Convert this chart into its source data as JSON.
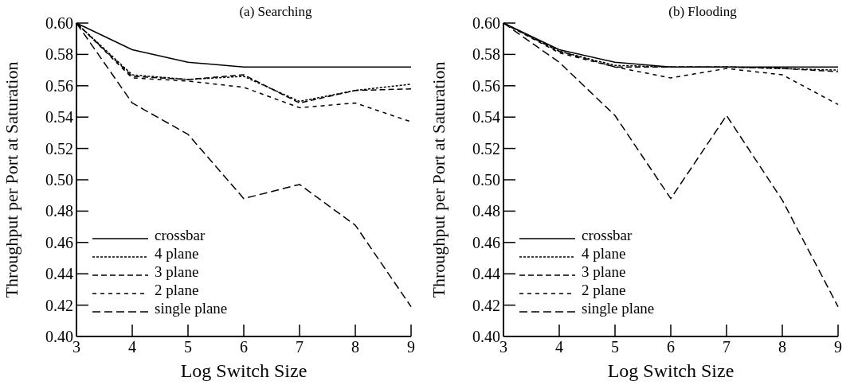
{
  "chart_data": [
    {
      "type": "line",
      "title": "(a) Searching",
      "xlabel": "Log Switch Size",
      "ylabel": "Throughput per Port at Saturation",
      "x": [
        3,
        4,
        5,
        6,
        7,
        8,
        9
      ],
      "xlim": [
        3,
        9
      ],
      "xticks": [
        3,
        4,
        5,
        6,
        7,
        8,
        9
      ],
      "ylim": [
        0.4,
        0.6
      ],
      "yticks": [
        {
          "value": 0.4,
          "label": "0.40"
        },
        0.42,
        0.44,
        0.46,
        0.48,
        {
          "value": 0.5,
          "label": "0.50"
        },
        0.52,
        0.54,
        0.56,
        0.58,
        {
          "value": 0.6,
          "label": "0.60"
        }
      ],
      "legend": "bottom left",
      "grid": false,
      "series": [
        {
          "name": "crossbar",
          "color": "#000000",
          "line_style": "solid",
          "values": [
            0.6,
            0.583,
            0.575,
            0.572,
            0.572,
            0.572,
            0.572
          ]
        },
        {
          "name": "4 plane",
          "color": "#000000",
          "line_style": "dotted",
          "values": [
            0.6,
            0.567,
            0.564,
            0.566,
            0.55,
            0.557,
            0.561
          ]
        },
        {
          "name": "3 plane",
          "color": "#000000",
          "line_style": "dashed",
          "values": [
            0.6,
            0.566,
            0.564,
            0.567,
            0.549,
            0.557,
            0.558
          ]
        },
        {
          "name": "2 plane",
          "color": "#000000",
          "line_style": "dashed",
          "values": [
            0.6,
            0.565,
            0.563,
            0.559,
            0.546,
            0.549,
            0.537
          ]
        },
        {
          "name": "single plane",
          "color": "#000000",
          "line_style": "dashed",
          "values": [
            0.6,
            0.549,
            0.529,
            0.488,
            0.497,
            0.471,
            0.419
          ]
        }
      ]
    },
    {
      "type": "line",
      "title": "(b) Flooding",
      "xlabel": "Log Switch Size",
      "ylabel": "Throughput per Port at Saturation",
      "x": [
        3,
        4,
        5,
        6,
        7,
        8,
        9
      ],
      "xlim": [
        3,
        9
      ],
      "xticks": [
        3,
        4,
        5,
        6,
        7,
        8,
        9
      ],
      "ylim": [
        0.4,
        0.6
      ],
      "yticks": [
        {
          "value": 0.4,
          "label": "0.40"
        },
        0.42,
        0.44,
        0.46,
        0.48,
        {
          "value": 0.5,
          "label": "0.50"
        },
        0.52,
        0.54,
        0.56,
        0.58,
        {
          "value": 0.6,
          "label": "0.60"
        }
      ],
      "legend": "bottom left",
      "grid": false,
      "series": [
        {
          "name": "crossbar",
          "color": "#000000",
          "line_style": "solid",
          "values": [
            0.6,
            0.583,
            0.575,
            0.572,
            0.572,
            0.572,
            0.572
          ]
        },
        {
          "name": "4 plane",
          "color": "#000000",
          "line_style": "dotted",
          "values": [
            0.6,
            0.582,
            0.573,
            0.572,
            0.572,
            0.571,
            0.57
          ]
        },
        {
          "name": "3 plane",
          "color": "#000000",
          "line_style": "dashed",
          "values": [
            0.6,
            0.582,
            0.572,
            0.572,
            0.572,
            0.571,
            0.569
          ]
        },
        {
          "name": "2 plane",
          "color": "#000000",
          "line_style": "dashed",
          "values": [
            0.6,
            0.581,
            0.572,
            0.565,
            0.571,
            0.567,
            0.548
          ]
        },
        {
          "name": "single plane",
          "color": "#000000",
          "line_style": "dashed",
          "values": [
            0.6,
            0.575,
            0.541,
            0.488,
            0.541,
            0.487,
            0.419
          ]
        }
      ]
    }
  ]
}
